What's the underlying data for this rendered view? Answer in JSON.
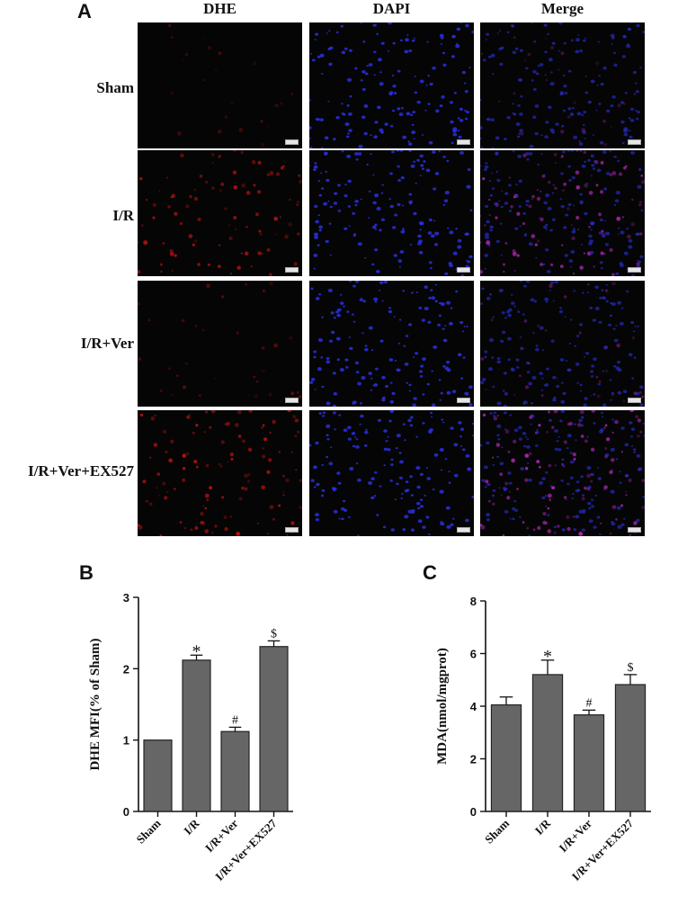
{
  "figure": {
    "panel_labels": [
      "A",
      "B",
      "C"
    ],
    "columns": [
      "DHE",
      "DAPI",
      "Merge"
    ],
    "rows": [
      "Sham",
      "I/R",
      "I/R+Ver",
      "I/R+Ver+EX527"
    ],
    "colors": {
      "dhe_red": "#d21414",
      "dapi_blue": "#2a30e0",
      "merge_magenta": "#c42cc8",
      "bar_fill": "#666666",
      "image_background": "#050505"
    }
  },
  "chart_data": [
    {
      "type": "bar",
      "panel": "B",
      "categories": [
        "Sham",
        "I/R",
        "I/R+Ver",
        "I/R+Ver+EX527"
      ],
      "values": [
        1.0,
        2.12,
        1.12,
        2.31
      ],
      "errors": [
        0,
        0.07,
        0.06,
        0.08
      ],
      "annotations": [
        "",
        "*",
        "#",
        "$"
      ],
      "ylabel": "DHE MFI(% of Sham)",
      "xlabel": "",
      "ylim": [
        0,
        3
      ],
      "yticks": [
        0,
        1,
        2,
        3
      ],
      "grid": false
    },
    {
      "type": "bar",
      "panel": "C",
      "categories": [
        "Sham",
        "I/R",
        "I/R+Ver",
        "I/R+Ver+EX527"
      ],
      "values": [
        4.05,
        5.2,
        3.67,
        4.82
      ],
      "errors": [
        0.3,
        0.55,
        0.18,
        0.38
      ],
      "annotations": [
        "",
        "*",
        "#",
        "$"
      ],
      "ylabel": "MDA(nmol/mgprot)",
      "xlabel": "",
      "ylim": [
        0,
        8
      ],
      "yticks": [
        0,
        2,
        4,
        6,
        8
      ],
      "grid": false
    }
  ]
}
